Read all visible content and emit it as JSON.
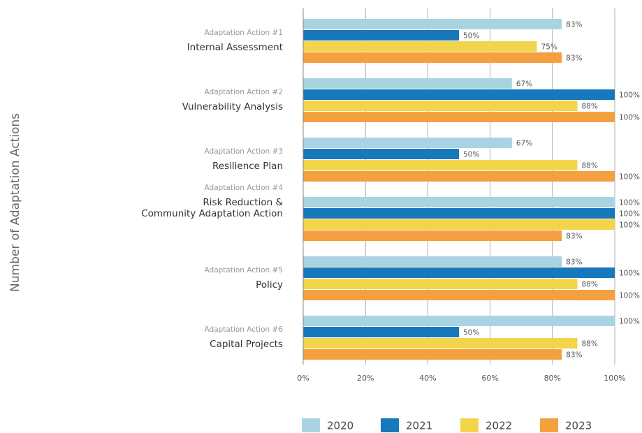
{
  "chart_data": {
    "type": "barh",
    "y_label": "Number of Adaptation Actions",
    "category_groups": [
      "Adaptation Action #1",
      "Adaptation Action #2",
      "Adaptation Action #3",
      "Adaptation Action #4",
      "Adaptation Action #5",
      "Adaptation Action #6"
    ],
    "categories": [
      "Internal Assessment",
      "Vulnerability Analysis",
      "Resilience Plan",
      "Risk Reduction &\nCommunity Adaptation Action",
      "Policy",
      "Capital Projects"
    ],
    "series": [
      {
        "name": "2020",
        "color": "#a8d4e2",
        "values": [
          83,
          67,
          67,
          100,
          83,
          100
        ],
        "value_labels": [
          "83%",
          "67%",
          "67%",
          "100%",
          "83%",
          "100%"
        ]
      },
      {
        "name": "2021",
        "color": "#1778bb",
        "values": [
          50,
          100,
          50,
          100,
          100,
          50
        ],
        "value_labels": [
          "50%",
          "100%",
          "50%",
          "100%",
          "100%",
          "50%"
        ]
      },
      {
        "name": "2022",
        "color": "#f3d54c",
        "values": [
          75,
          88,
          88,
          100,
          88,
          88
        ],
        "value_labels": [
          "75%",
          "88%",
          "88%",
          "100%",
          "88%",
          "88%"
        ]
      },
      {
        "name": "2023",
        "color": "#f5a03e",
        "values": [
          83,
          100,
          100,
          83,
          100,
          83
        ],
        "value_labels": [
          "83%",
          "100%",
          "100%",
          "83%",
          "100%",
          "83%"
        ]
      }
    ],
    "xlim": [
      0,
      100
    ],
    "xticks": [
      {
        "value": 0,
        "label": "0%"
      },
      {
        "value": 20,
        "label": "20%"
      },
      {
        "value": 40,
        "label": "40%"
      },
      {
        "value": 60,
        "label": "60%"
      },
      {
        "value": 80,
        "label": "80%"
      },
      {
        "value": 100,
        "label": "100%"
      }
    ],
    "grid": true,
    "legend": "bottom"
  }
}
